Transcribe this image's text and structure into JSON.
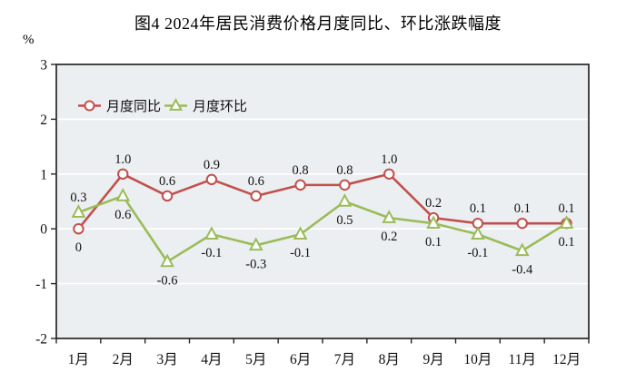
{
  "page": {
    "title": "图4 2024年居民消费价格月度同比、环比涨跌幅度",
    "unit_label": "%"
  },
  "chart_data": {
    "type": "line",
    "title": "图4 2024年居民消费价格月度同比、环比涨跌幅度",
    "ylabel": "%",
    "xlabel": "",
    "ylim": [
      -2,
      3
    ],
    "y_ticks": [
      3,
      2,
      1,
      0,
      -1,
      -2
    ],
    "grid": true,
    "grid_color": "#ffffff",
    "plot_bg": "#eceff1",
    "frame_color": "#262626",
    "legend_position": "top-left-inside",
    "categories": [
      "1月",
      "2月",
      "3月",
      "4月",
      "5月",
      "6月",
      "7月",
      "8月",
      "9月",
      "10月",
      "11月",
      "12月"
    ],
    "series": [
      {
        "name": "月度同比",
        "color": "#c0504d",
        "marker": "circle",
        "values": [
          0,
          1.0,
          0.6,
          0.9,
          0.6,
          0.8,
          0.8,
          1.0,
          0.2,
          0.1,
          0.1,
          0.1
        ],
        "labels": [
          "0",
          "1.0",
          "0.6",
          "0.9",
          "0.6",
          "0.8",
          "0.8",
          "1.0",
          "0.2",
          "0.1",
          "0.1",
          "0.1"
        ],
        "label_side": [
          "below",
          "above",
          "above",
          "above",
          "above",
          "above",
          "above",
          "above",
          "above",
          "above",
          "above",
          "above"
        ]
      },
      {
        "name": "月度环比",
        "color": "#9bbb59",
        "marker": "triangle",
        "values": [
          0.3,
          0.6,
          -0.6,
          -0.1,
          -0.3,
          -0.1,
          0.5,
          0.2,
          0.1,
          -0.1,
          -0.4,
          0.1
        ],
        "labels": [
          "0.3",
          "0.6",
          "-0.6",
          "-0.1",
          "-0.3",
          "-0.1",
          "0.5",
          "0.2",
          "0.1",
          "-0.1",
          "-0.4",
          "0.1"
        ],
        "label_side": [
          "above",
          "below",
          "below",
          "below",
          "below",
          "below",
          "below",
          "below",
          "below",
          "below",
          "below",
          "below"
        ]
      }
    ]
  }
}
